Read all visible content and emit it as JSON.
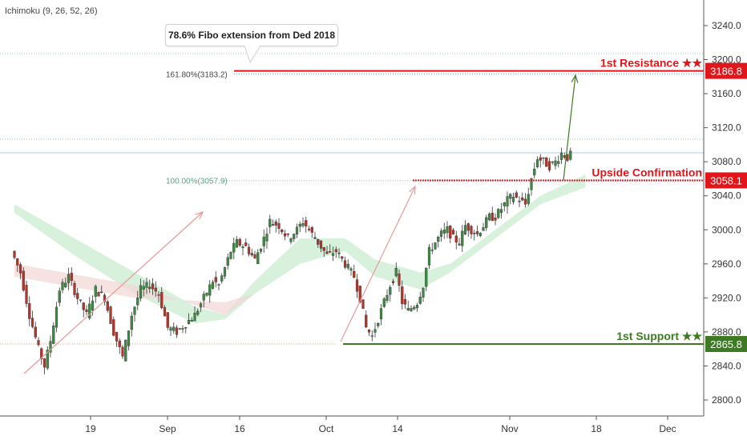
{
  "indicator": {
    "label": "Ichimoku (9, 26, 52, 26)"
  },
  "callout": {
    "text": "78.6% Fibo extension from Ded 2018"
  },
  "chart_data": {
    "type": "candlestick",
    "y_ticks": [
      2800,
      2840,
      2880,
      2920,
      2960,
      3000,
      3040,
      3080,
      3120,
      3160,
      3200,
      3240
    ],
    "y_tick_labels": [
      "2800.0",
      "2840.0",
      "2880.0",
      "2920.0",
      "2960.0",
      "3000.0",
      "3040.0",
      "3080.0",
      "3120.0",
      "3160.0",
      "3200.0",
      "3240.0"
    ],
    "x_labels": [
      "19",
      "Sep",
      "16",
      "Oct",
      "14",
      "Nov",
      "18",
      "Dec"
    ],
    "fib_levels": [
      {
        "label": "161.80%(3183.2)",
        "value": 3183.2
      },
      {
        "label": "100.00%(3057.9)",
        "value": 3057.9
      }
    ],
    "levels": [
      {
        "name": "1st Resistance ★★",
        "value": 3186.8,
        "label": "3186.8",
        "color": "#e0161b"
      },
      {
        "name": "Upside Confirmation",
        "value": 3058.1,
        "label": "3058.1",
        "color": "#e0161b"
      },
      {
        "name": "1st Support ★★",
        "value": 2865.8,
        "label": "2865.8",
        "color": "#3e7a22"
      }
    ],
    "close_path": [
      [
        0,
        2975
      ],
      [
        3,
        2950
      ],
      [
        6,
        2900
      ],
      [
        9,
        2860
      ],
      [
        11,
        2840
      ],
      [
        13,
        2870
      ],
      [
        16,
        2930
      ],
      [
        19,
        2945
      ],
      [
        22,
        2920
      ],
      [
        25,
        2900
      ],
      [
        28,
        2930
      ],
      [
        31,
        2920
      ],
      [
        34,
        2880
      ],
      [
        37,
        2850
      ],
      [
        40,
        2900
      ],
      [
        43,
        2930
      ],
      [
        46,
        2935
      ],
      [
        49,
        2925
      ],
      [
        52,
        2885
      ],
      [
        55,
        2880
      ],
      [
        58,
        2890
      ],
      [
        61,
        2900
      ],
      [
        64,
        2920
      ],
      [
        67,
        2940
      ],
      [
        69,
        2935
      ],
      [
        71,
        2955
      ],
      [
        73,
        2975
      ],
      [
        75,
        2985
      ],
      [
        78,
        2980
      ],
      [
        81,
        2965
      ],
      [
        84,
        2990
      ],
      [
        86,
        3010
      ],
      [
        89,
        3005
      ],
      [
        92,
        2990
      ],
      [
        95,
        3000
      ],
      [
        97,
        3010
      ],
      [
        100,
        2995
      ],
      [
        102,
        2985
      ],
      [
        105,
        2970
      ],
      [
        108,
        2975
      ],
      [
        111,
        2960
      ],
      [
        114,
        2945
      ],
      [
        116,
        2920
      ],
      [
        118,
        2885
      ],
      [
        120,
        2875
      ],
      [
        123,
        2905
      ],
      [
        126,
        2935
      ],
      [
        128,
        2950
      ],
      [
        130,
        2915
      ],
      [
        132,
        2905
      ],
      [
        135,
        2915
      ],
      [
        137,
        2935
      ],
      [
        139,
        2975
      ],
      [
        141,
        2985
      ],
      [
        143,
        2995
      ],
      [
        145,
        3000
      ],
      [
        147,
        2990
      ],
      [
        149,
        2985
      ],
      [
        151,
        3005
      ],
      [
        153,
        3000
      ],
      [
        155,
        2995
      ],
      [
        157,
        3005
      ],
      [
        159,
        3015
      ],
      [
        161,
        3015
      ],
      [
        163,
        3025
      ],
      [
        165,
        3035
      ],
      [
        167,
        3040
      ],
      [
        169,
        3035
      ],
      [
        171,
        3030
      ],
      [
        173,
        3060
      ],
      [
        175,
        3085
      ],
      [
        177,
        3080
      ],
      [
        179,
        3075
      ],
      [
        181,
        3080
      ],
      [
        183,
        3090
      ],
      [
        185,
        3085
      ],
      [
        186,
        3088
      ]
    ],
    "cloud_a": [
      [
        0,
        3030
      ],
      [
        20,
        2990
      ],
      [
        40,
        2950
      ],
      [
        60,
        2910
      ],
      [
        70,
        2900
      ],
      [
        80,
        2940
      ],
      [
        95,
        2990
      ],
      [
        110,
        2990
      ],
      [
        120,
        2965
      ],
      [
        135,
        2950
      ],
      [
        145,
        2960
      ],
      [
        160,
        3000
      ],
      [
        175,
        3040
      ],
      [
        190,
        3065
      ]
    ],
    "cloud_b": [
      [
        0,
        3020
      ],
      [
        20,
        2970
      ],
      [
        40,
        2925
      ],
      [
        60,
        2890
      ],
      [
        70,
        2895
      ],
      [
        80,
        2925
      ],
      [
        95,
        2960
      ],
      [
        110,
        2975
      ],
      [
        120,
        2945
      ],
      [
        135,
        2930
      ],
      [
        145,
        2950
      ],
      [
        160,
        2990
      ],
      [
        175,
        3030
      ],
      [
        190,
        3050
      ]
    ],
    "x_range": [
      0,
      220
    ],
    "y_range": [
      2780,
      3270
    ]
  }
}
